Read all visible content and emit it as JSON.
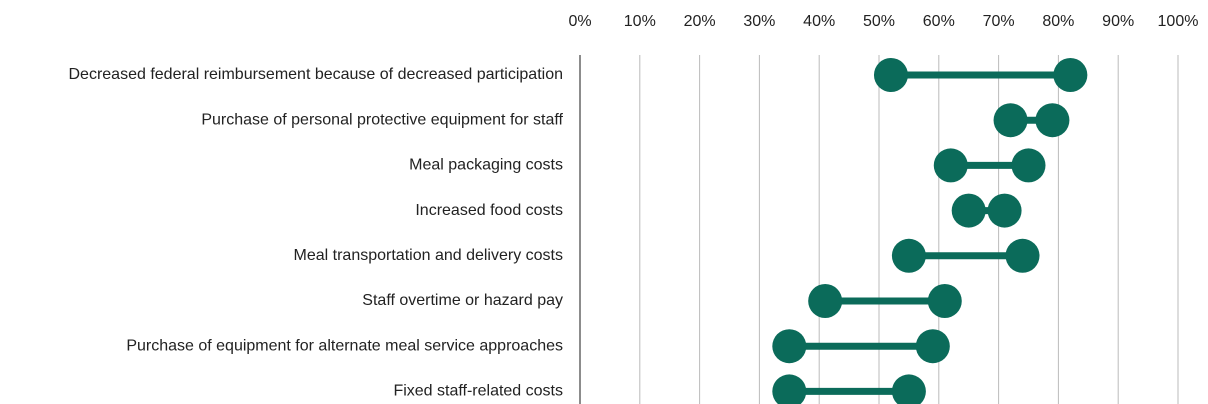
{
  "chart_data": {
    "type": "dumbbell",
    "categories": [
      "Decreased federal reimbursement because of decreased participation",
      "Purchase of personal protective equipment for staff",
      "Meal packaging costs",
      "Increased food costs",
      "Meal transportation and delivery costs",
      "Staff overtime or hazard pay",
      "Purchase of equipment for alternate meal service approaches",
      "Fixed staff-related costs"
    ],
    "series": [
      {
        "color": "#0b6b5a",
        "values": [
          52,
          72,
          62,
          65,
          55,
          41,
          35,
          35
        ]
      },
      {
        "color": "#0b6b5a",
        "values": [
          82,
          79,
          75,
          71,
          74,
          61,
          59,
          55
        ]
      }
    ],
    "xlim": [
      0,
      100
    ],
    "xticks": [
      {
        "value": 0,
        "label": "0%"
      },
      {
        "value": 10,
        "label": "10%"
      },
      {
        "value": 20,
        "label": "20%"
      },
      {
        "value": 30,
        "label": "30%"
      },
      {
        "value": 40,
        "label": "40%"
      },
      {
        "value": 50,
        "label": "50%"
      },
      {
        "value": 60,
        "label": "60%"
      },
      {
        "value": 70,
        "label": "70%"
      },
      {
        "value": 80,
        "label": "80%"
      },
      {
        "value": 90,
        "label": "90%"
      },
      {
        "value": 100,
        "label": "100%"
      }
    ],
    "grid": true
  }
}
